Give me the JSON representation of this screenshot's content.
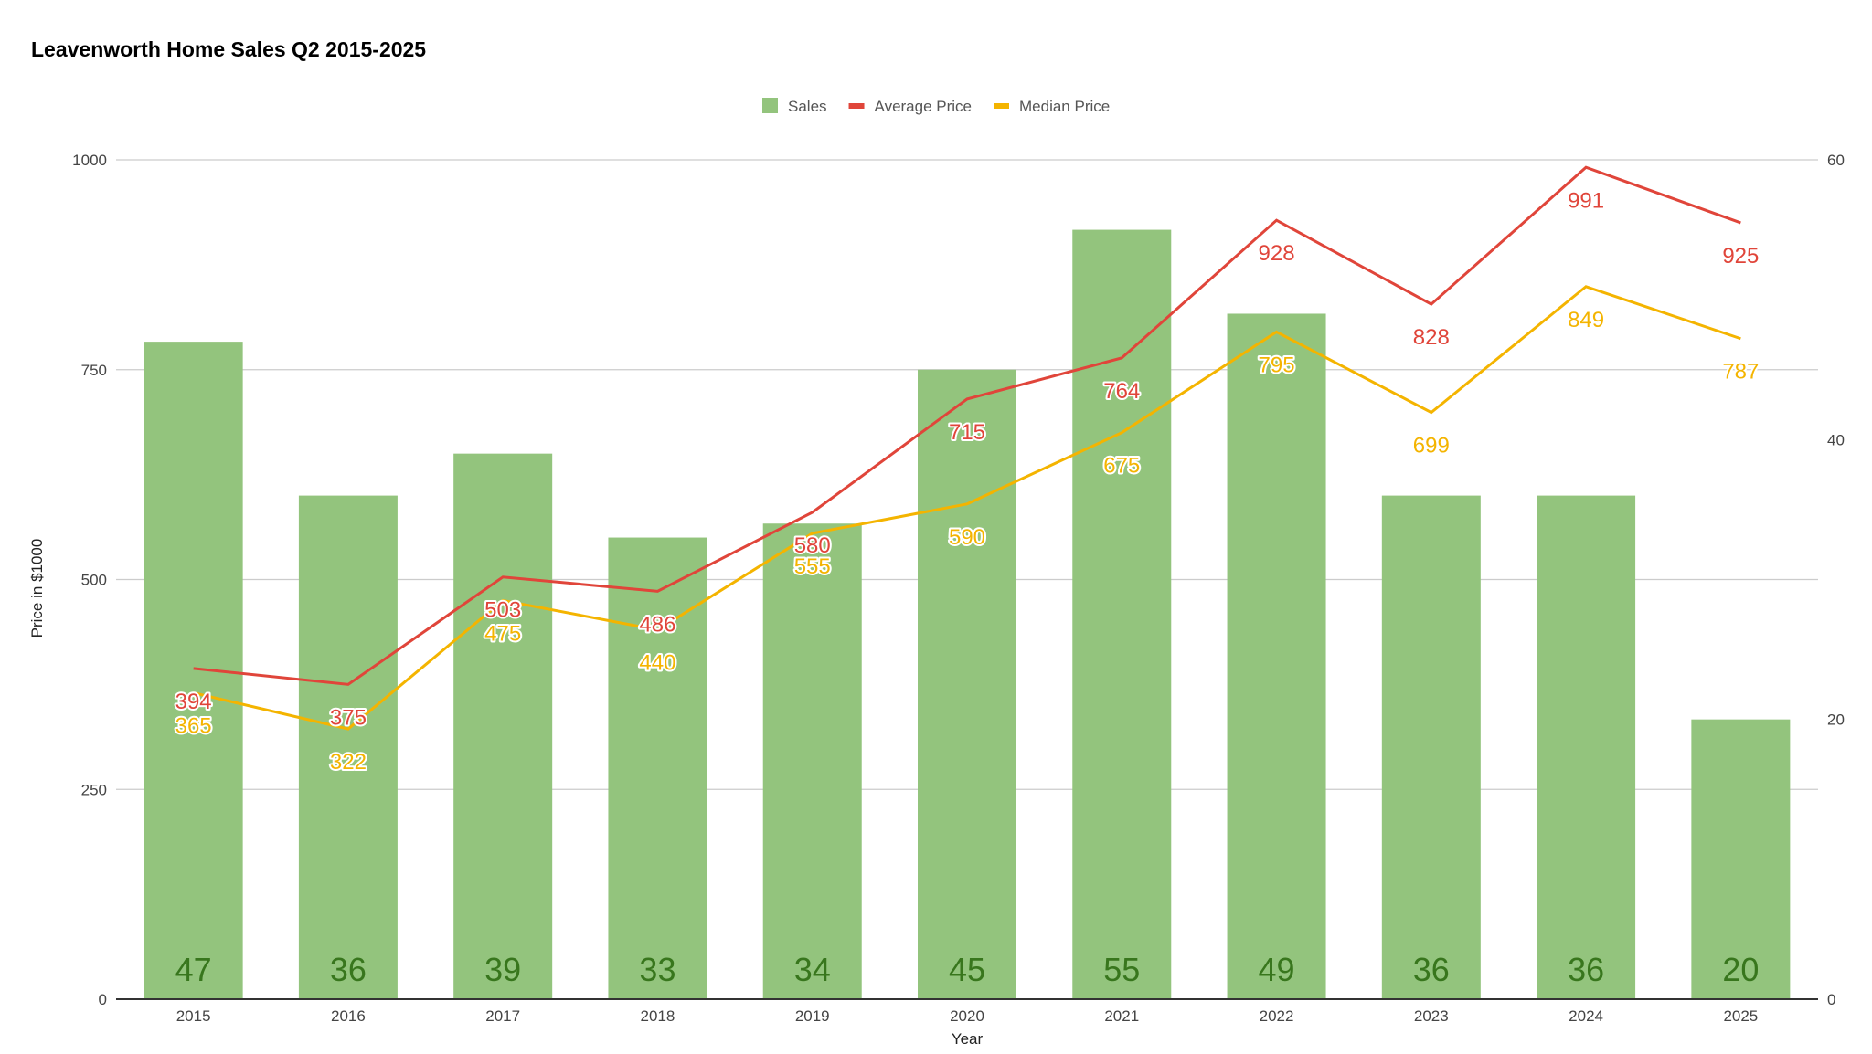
{
  "chart_data": {
    "type": "bar+line",
    "title": "Leavenworth Home Sales Q2 2015-2025",
    "xlabel": "Year",
    "ylabel": "Price in $1000",
    "ylim": [
      0,
      1000
    ],
    "y_ticks": [
      "0",
      "250",
      "500",
      "750",
      "1000"
    ],
    "y2lim": [
      0,
      60
    ],
    "y2_ticks": [
      "0",
      "20",
      "40",
      "60"
    ],
    "grid": true,
    "legend_position": "top",
    "categories": [
      "2015",
      "2016",
      "2017",
      "2018",
      "2019",
      "2020",
      "2021",
      "2022",
      "2023",
      "2024",
      "2025"
    ],
    "series": [
      {
        "name": "Sales",
        "type": "bar",
        "axis": "right",
        "color": "#93c47d",
        "label_color": "#38761d",
        "values": [
          47,
          36,
          39,
          33,
          34,
          45,
          55,
          49,
          36,
          36,
          20
        ]
      },
      {
        "name": "Average Price",
        "type": "line",
        "axis": "left",
        "color": "#e0453a",
        "values": [
          394,
          375,
          503,
          486,
          580,
          715,
          764,
          928,
          828,
          991,
          925
        ]
      },
      {
        "name": "Median Price",
        "type": "line",
        "axis": "left",
        "color": "#f4b400",
        "values": [
          365,
          322,
          475,
          440,
          555,
          590,
          675,
          795,
          699,
          849,
          787
        ]
      }
    ]
  }
}
